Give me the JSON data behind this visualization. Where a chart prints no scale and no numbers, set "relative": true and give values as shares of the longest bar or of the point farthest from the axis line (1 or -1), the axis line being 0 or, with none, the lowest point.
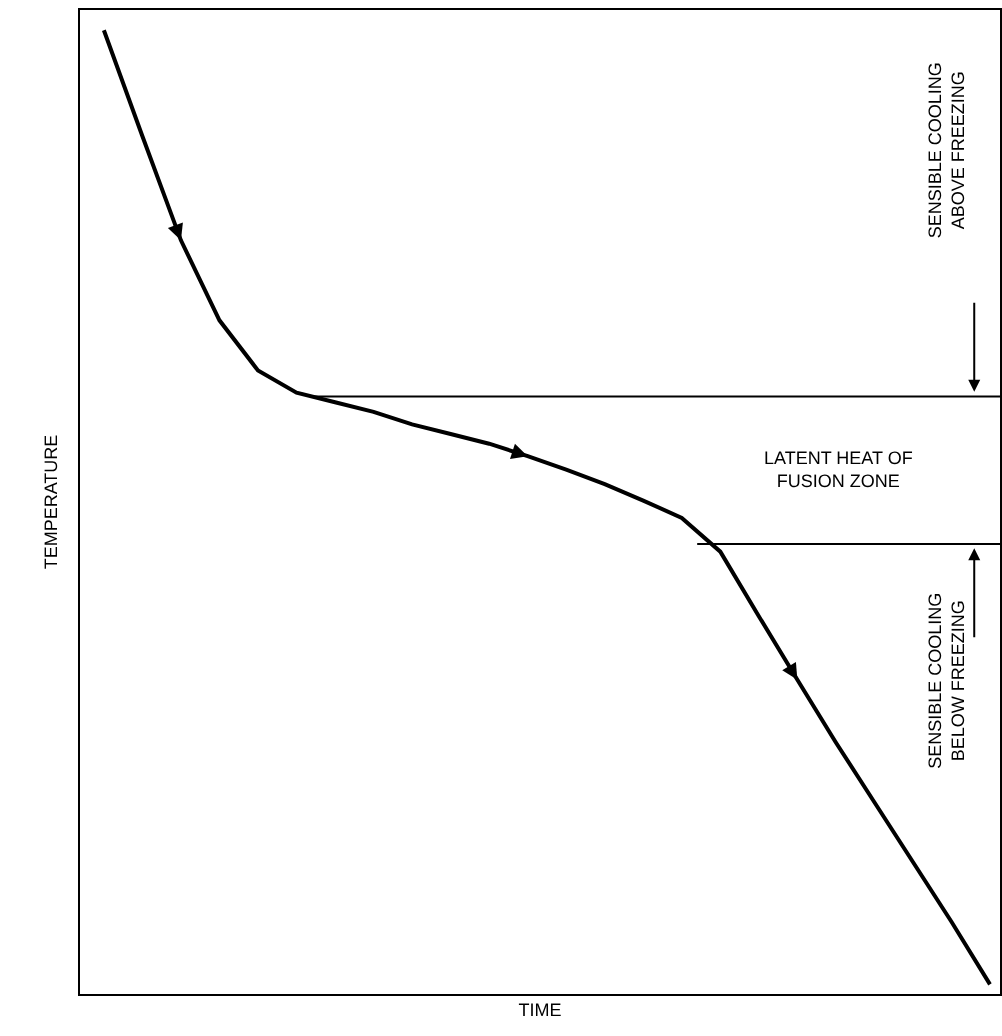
{
  "chart_data": {
    "type": "line",
    "relative": true,
    "xlabel": "TIME",
    "ylabel": "TEMPERATURE",
    "categories": [
      null,
      null,
      null,
      null,
      null,
      null,
      null,
      null,
      null,
      null,
      null,
      null,
      null,
      null,
      null,
      null,
      null,
      null,
      null,
      null,
      null,
      null,
      null,
      null
    ],
    "series": [
      {
        "color": "#000000",
        "values": [
          1.0,
          0.89,
          0.782,
          0.699,
          0.647,
          0.624,
          0.614,
          0.604,
          0.591,
          0.581,
          0.571,
          0.558,
          0.544,
          0.529,
          0.512,
          0.494,
          0.459,
          0.392,
          0.326,
          0.261,
          0.199,
          0.137,
          0.075,
          0.01
        ]
      }
    ],
    "ref_lines": [
      {
        "axis": "y",
        "value": 0.62,
        "color": "#000000"
      },
      {
        "axis": "y",
        "value": 0.467,
        "color": "#000000"
      }
    ],
    "annotations": [
      "SENSIBLE COOLING\nABOVE FREEZING",
      "LATENT HEAT OF\nFUSION ZONE",
      "SENSIBLE COOLING\nBELOW FREEZING"
    ],
    "marker": "none",
    "line_style": "solid"
  }
}
